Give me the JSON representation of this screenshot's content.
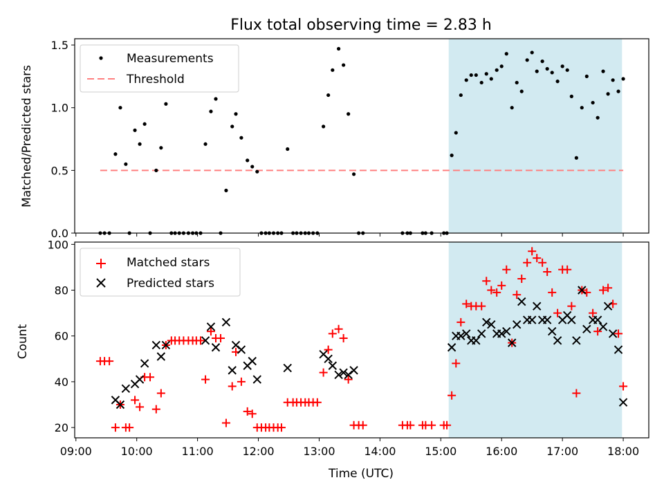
{
  "colors": {
    "background": "#ffffff",
    "shade": "#add8e6",
    "threshold": "#ff7f7f",
    "matched": "#ff0000",
    "predicted": "#000000",
    "measurement": "#000000"
  },
  "chart_data": [
    {
      "type": "scatter",
      "title": "Flux total observing time = 2.83 h",
      "xlabel": "",
      "ylabel": "Matched/Predicted stars",
      "xlim_hours": [
        8.98,
        18.42
      ],
      "ylim": [
        0,
        1.55
      ],
      "xticks_hours": [
        9,
        10,
        11,
        12,
        13,
        14,
        15,
        16,
        17,
        18
      ],
      "yticks": [
        0.0,
        0.5,
        1.0,
        1.5
      ],
      "ytick_labels": [
        "0.0",
        "0.5",
        "1.0",
        "1.5"
      ],
      "shaded_region_hours": [
        15.13,
        17.98
      ],
      "legend": [
        {
          "label": "Measurements",
          "marker": "dot"
        },
        {
          "label": "Threshold",
          "marker": "dashed-line"
        }
      ],
      "threshold": {
        "value": 0.5,
        "x_range_hours": [
          9.4,
          18.0
        ]
      },
      "series": [
        {
          "name": "Measurements",
          "points": [
            [
              9.4,
              0
            ],
            [
              9.47,
              0
            ],
            [
              9.55,
              0
            ],
            [
              9.65,
              0.63
            ],
            [
              9.73,
              1.0
            ],
            [
              9.82,
              0.55
            ],
            [
              9.88,
              0
            ],
            [
              9.97,
              0.82
            ],
            [
              10.05,
              0.71
            ],
            [
              10.13,
              0.87
            ],
            [
              10.22,
              0
            ],
            [
              10.32,
              0.5
            ],
            [
              10.4,
              0.68
            ],
            [
              10.48,
              1.03
            ],
            [
              10.57,
              0
            ],
            [
              10.63,
              0
            ],
            [
              10.7,
              0
            ],
            [
              10.77,
              0
            ],
            [
              10.85,
              0
            ],
            [
              10.92,
              0
            ],
            [
              10.98,
              0
            ],
            [
              11.05,
              0
            ],
            [
              11.13,
              0.71
            ],
            [
              11.22,
              0.97
            ],
            [
              11.3,
              1.07
            ],
            [
              11.38,
              0
            ],
            [
              11.47,
              0.34
            ],
            [
              11.57,
              0.85
            ],
            [
              11.63,
              0.95
            ],
            [
              11.72,
              0.76
            ],
            [
              11.82,
              0.58
            ],
            [
              11.9,
              0.53
            ],
            [
              11.98,
              0.49
            ],
            [
              12.05,
              0
            ],
            [
              12.12,
              0
            ],
            [
              12.18,
              0
            ],
            [
              12.25,
              0
            ],
            [
              12.32,
              0
            ],
            [
              12.38,
              0
            ],
            [
              12.48,
              0.67
            ],
            [
              12.57,
              0
            ],
            [
              12.63,
              0
            ],
            [
              12.7,
              0
            ],
            [
              12.77,
              0
            ],
            [
              12.83,
              0
            ],
            [
              12.9,
              0
            ],
            [
              12.97,
              0
            ],
            [
              13.07,
              0.85
            ],
            [
              13.15,
              1.1
            ],
            [
              13.22,
              1.3
            ],
            [
              13.32,
              1.47
            ],
            [
              13.4,
              1.34
            ],
            [
              13.48,
              0.95
            ],
            [
              13.57,
              0.47
            ],
            [
              13.65,
              0
            ],
            [
              13.72,
              0
            ],
            [
              14.37,
              0
            ],
            [
              14.45,
              0
            ],
            [
              14.5,
              0
            ],
            [
              14.7,
              0
            ],
            [
              14.75,
              0
            ],
            [
              14.85,
              0
            ],
            [
              15.05,
              0
            ],
            [
              15.1,
              0
            ],
            [
              15.18,
              0.62
            ],
            [
              15.25,
              0.8
            ],
            [
              15.33,
              1.1
            ],
            [
              15.42,
              1.22
            ],
            [
              15.5,
              1.26
            ],
            [
              15.58,
              1.26
            ],
            [
              15.67,
              1.2
            ],
            [
              15.75,
              1.27
            ],
            [
              15.83,
              1.23
            ],
            [
              15.92,
              1.3
            ],
            [
              16.0,
              1.33
            ],
            [
              16.08,
              1.43
            ],
            [
              16.17,
              1.0
            ],
            [
              16.25,
              1.2
            ],
            [
              16.33,
              1.13
            ],
            [
              16.42,
              1.38
            ],
            [
              16.5,
              1.44
            ],
            [
              16.58,
              1.29
            ],
            [
              16.67,
              1.37
            ],
            [
              16.75,
              1.31
            ],
            [
              16.83,
              1.28
            ],
            [
              16.92,
              1.21
            ],
            [
              17.0,
              1.33
            ],
            [
              17.08,
              1.3
            ],
            [
              17.15,
              1.09
            ],
            [
              17.23,
              0.6
            ],
            [
              17.32,
              1.0
            ],
            [
              17.4,
              1.25
            ],
            [
              17.5,
              1.04
            ],
            [
              17.58,
              0.92
            ],
            [
              17.67,
              1.29
            ],
            [
              17.75,
              1.11
            ],
            [
              17.83,
              1.22
            ],
            [
              17.92,
              1.13
            ],
            [
              18.0,
              1.23
            ]
          ]
        }
      ]
    },
    {
      "type": "scatter",
      "title": "",
      "xlabel": "Time (UTC)",
      "ylabel": "Count",
      "xlim_hours": [
        8.98,
        18.42
      ],
      "ylim": [
        15.5,
        101
      ],
      "xticks_hours": [
        9,
        10,
        11,
        12,
        13,
        14,
        15,
        16,
        17,
        18
      ],
      "xtick_labels": [
        "09:00",
        "10:00",
        "11:00",
        "12:00",
        "13:00",
        "14:00",
        "15:00",
        "16:00",
        "17:00",
        "18:00"
      ],
      "yticks": [
        20,
        40,
        60,
        80,
        100
      ],
      "ytick_labels": [
        "20",
        "40",
        "60",
        "80",
        "100"
      ],
      "shaded_region_hours": [
        15.13,
        17.98
      ],
      "legend": [
        {
          "label": "Matched stars",
          "marker": "plus"
        },
        {
          "label": "Predicted stars",
          "marker": "x"
        }
      ],
      "series": [
        {
          "name": "Matched stars",
          "points": [
            [
              9.4,
              49
            ],
            [
              9.47,
              49
            ],
            [
              9.55,
              49
            ],
            [
              9.65,
              20
            ],
            [
              9.73,
              30
            ],
            [
              9.82,
              20
            ],
            [
              9.88,
              20
            ],
            [
              9.97,
              32
            ],
            [
              10.05,
              29
            ],
            [
              10.13,
              42
            ],
            [
              10.22,
              42
            ],
            [
              10.32,
              28
            ],
            [
              10.4,
              35
            ],
            [
              10.48,
              56
            ],
            [
              10.57,
              58
            ],
            [
              10.63,
              58
            ],
            [
              10.7,
              58
            ],
            [
              10.77,
              58
            ],
            [
              10.85,
              58
            ],
            [
              10.92,
              58
            ],
            [
              10.98,
              58
            ],
            [
              11.05,
              58
            ],
            [
              11.13,
              41
            ],
            [
              11.22,
              62
            ],
            [
              11.3,
              59
            ],
            [
              11.38,
              59
            ],
            [
              11.47,
              22
            ],
            [
              11.57,
              38
            ],
            [
              11.63,
              53
            ],
            [
              11.72,
              40
            ],
            [
              11.82,
              27
            ],
            [
              11.9,
              26
            ],
            [
              11.98,
              20
            ],
            [
              12.05,
              20
            ],
            [
              12.12,
              20
            ],
            [
              12.18,
              20
            ],
            [
              12.25,
              20
            ],
            [
              12.32,
              20
            ],
            [
              12.38,
              20
            ],
            [
              12.48,
              31
            ],
            [
              12.57,
              31
            ],
            [
              12.63,
              31
            ],
            [
              12.7,
              31
            ],
            [
              12.77,
              31
            ],
            [
              12.83,
              31
            ],
            [
              12.9,
              31
            ],
            [
              12.97,
              31
            ],
            [
              13.07,
              44
            ],
            [
              13.15,
              54
            ],
            [
              13.22,
              61
            ],
            [
              13.32,
              63
            ],
            [
              13.4,
              59
            ],
            [
              13.48,
              41
            ],
            [
              13.57,
              21
            ],
            [
              13.65,
              21
            ],
            [
              13.72,
              21
            ],
            [
              14.37,
              21
            ],
            [
              14.45,
              21
            ],
            [
              14.5,
              21
            ],
            [
              14.7,
              21
            ],
            [
              14.75,
              21
            ],
            [
              14.85,
              21
            ],
            [
              15.05,
              21
            ],
            [
              15.1,
              21
            ],
            [
              15.18,
              34
            ],
            [
              15.25,
              48
            ],
            [
              15.33,
              66
            ],
            [
              15.42,
              74
            ],
            [
              15.5,
              73
            ],
            [
              15.58,
              73
            ],
            [
              15.67,
              73
            ],
            [
              15.75,
              84
            ],
            [
              15.83,
              80
            ],
            [
              15.92,
              79
            ],
            [
              16.0,
              82
            ],
            [
              16.08,
              89
            ],
            [
              16.17,
              57
            ],
            [
              16.25,
              78
            ],
            [
              16.33,
              85
            ],
            [
              16.42,
              92
            ],
            [
              16.5,
              97
            ],
            [
              16.58,
              94
            ],
            [
              16.67,
              92
            ],
            [
              16.75,
              88
            ],
            [
              16.83,
              79
            ],
            [
              16.92,
              70
            ],
            [
              17.0,
              89
            ],
            [
              17.08,
              89
            ],
            [
              17.15,
              73
            ],
            [
              17.23,
              35
            ],
            [
              17.32,
              80
            ],
            [
              17.4,
              79
            ],
            [
              17.5,
              70
            ],
            [
              17.58,
              62
            ],
            [
              17.67,
              80
            ],
            [
              17.75,
              81
            ],
            [
              17.83,
              74
            ],
            [
              17.92,
              61
            ],
            [
              18.0,
              38
            ]
          ]
        },
        {
          "name": "Predicted stars",
          "points": [
            [
              9.65,
              32
            ],
            [
              9.73,
              30
            ],
            [
              9.82,
              37
            ],
            [
              9.97,
              39
            ],
            [
              10.05,
              41
            ],
            [
              10.13,
              48
            ],
            [
              10.32,
              56
            ],
            [
              10.4,
              51
            ],
            [
              10.48,
              56
            ],
            [
              11.13,
              58
            ],
            [
              11.22,
              64
            ],
            [
              11.3,
              55
            ],
            [
              11.47,
              66
            ],
            [
              11.57,
              45
            ],
            [
              11.63,
              56
            ],
            [
              11.72,
              54
            ],
            [
              11.82,
              47
            ],
            [
              11.9,
              49
            ],
            [
              11.98,
              41
            ],
            [
              12.48,
              46
            ],
            [
              13.07,
              52
            ],
            [
              13.15,
              50
            ],
            [
              13.22,
              47
            ],
            [
              13.32,
              43
            ],
            [
              13.4,
              44
            ],
            [
              13.48,
              43
            ],
            [
              13.57,
              45
            ],
            [
              15.18,
              55
            ],
            [
              15.25,
              60
            ],
            [
              15.33,
              60
            ],
            [
              15.42,
              61
            ],
            [
              15.5,
              58
            ],
            [
              15.58,
              58
            ],
            [
              15.67,
              61
            ],
            [
              15.75,
              66
            ],
            [
              15.83,
              65
            ],
            [
              15.92,
              61
            ],
            [
              16.0,
              61
            ],
            [
              16.08,
              62
            ],
            [
              16.17,
              57
            ],
            [
              16.25,
              65
            ],
            [
              16.33,
              75
            ],
            [
              16.42,
              67
            ],
            [
              16.5,
              67
            ],
            [
              16.58,
              73
            ],
            [
              16.67,
              67
            ],
            [
              16.75,
              67
            ],
            [
              16.83,
              62
            ],
            [
              16.92,
              58
            ],
            [
              17.0,
              67
            ],
            [
              17.08,
              69
            ],
            [
              17.15,
              67
            ],
            [
              17.23,
              58
            ],
            [
              17.32,
              80
            ],
            [
              17.4,
              63
            ],
            [
              17.5,
              67
            ],
            [
              17.58,
              67
            ],
            [
              17.67,
              64
            ],
            [
              17.75,
              73
            ],
            [
              17.83,
              61
            ],
            [
              17.92,
              54
            ],
            [
              18.0,
              31
            ]
          ]
        }
      ]
    }
  ]
}
